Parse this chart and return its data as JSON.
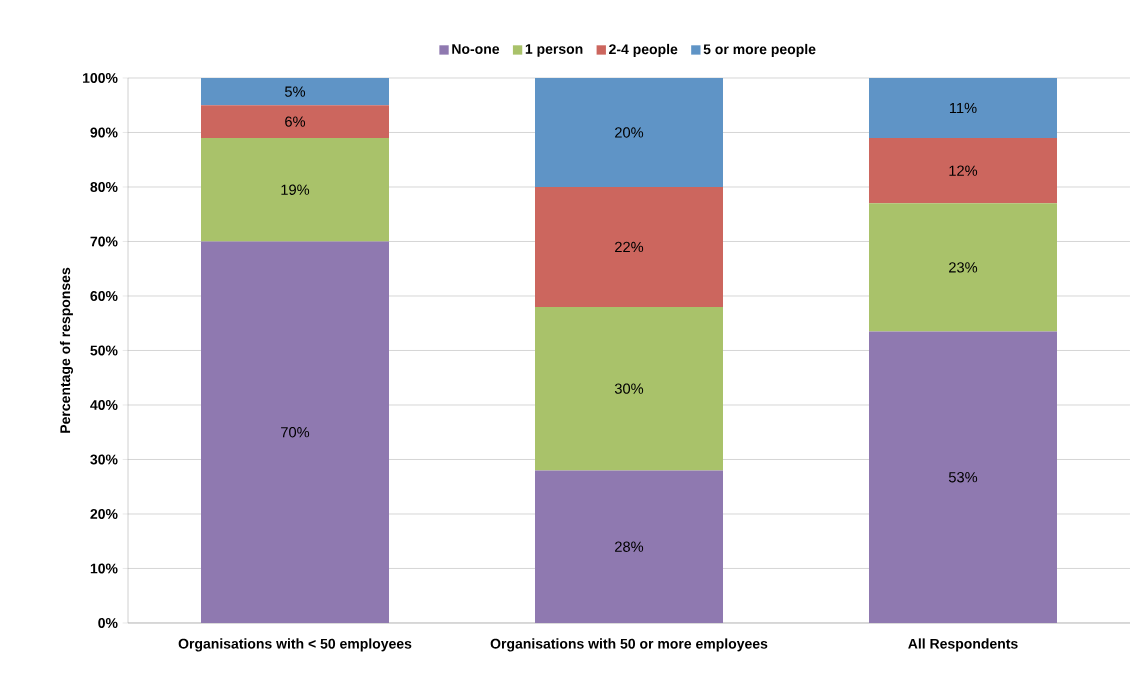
{
  "chart_data": {
    "type": "bar",
    "stacked": true,
    "ylabel": "Percentage of responses",
    "categories": [
      "Organisations with < 50 employees",
      "Organisations with 50 or more employees",
      "All Respondents"
    ],
    "series": [
      {
        "name": "No-one",
        "color": "#8f79b0",
        "values": [
          70,
          28,
          53.5
        ],
        "value_labels": [
          "70%",
          "28%",
          "53%"
        ]
      },
      {
        "name": "1 person",
        "color": "#a9c26a",
        "values": [
          19,
          30,
          23.5
        ],
        "value_labels": [
          "19%",
          "30%",
          "23%"
        ]
      },
      {
        "name": "2-4 people",
        "color": "#cc665e",
        "values": [
          6,
          22,
          12
        ],
        "value_labels": [
          "6%",
          "22%",
          "12%"
        ]
      },
      {
        "name": "5 or more people",
        "color": "#5f94c6",
        "values": [
          5,
          20,
          11
        ],
        "value_labels": [
          "5%",
          "20%",
          "11%"
        ]
      }
    ],
    "ylim": [
      0,
      100
    ],
    "yticks": [
      {
        "value": 0,
        "label": "0%"
      },
      {
        "value": 10,
        "label": "10%"
      },
      {
        "value": 20,
        "label": "20%"
      },
      {
        "value": 30,
        "label": "30%"
      },
      {
        "value": 40,
        "label": "40%"
      },
      {
        "value": 50,
        "label": "50%"
      },
      {
        "value": 60,
        "label": "60%"
      },
      {
        "value": 70,
        "label": "70%"
      },
      {
        "value": 80,
        "label": "80%"
      },
      {
        "value": 90,
        "label": "90%"
      },
      {
        "value": 100,
        "label": "100%"
      }
    ],
    "grid": "y",
    "legend": "top"
  }
}
